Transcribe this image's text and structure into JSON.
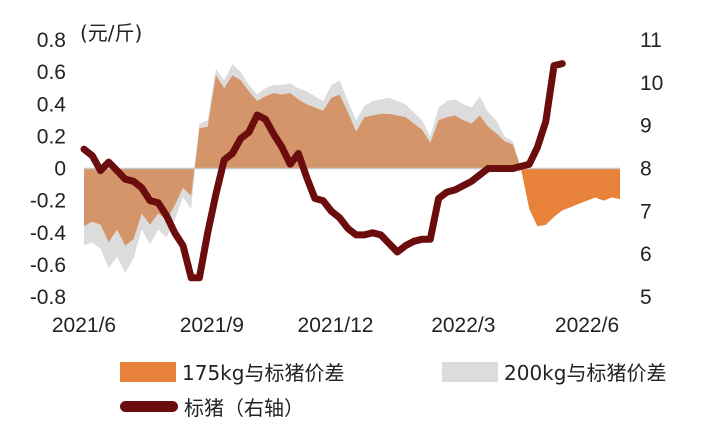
{
  "chart_data": {
    "type": "area+line",
    "unit_label": "(元/斤)",
    "x_tick_labels": [
      "2021/6",
      "2021/9",
      "2021/12",
      "2022/3",
      "2022/6"
    ],
    "y_left": {
      "min": -0.8,
      "max": 0.8,
      "ticks": [
        "0.8",
        "0.6",
        "0.4",
        "0.2",
        "0",
        "-0.2",
        "-0.4",
        "-0.6",
        "-0.8"
      ]
    },
    "y_right": {
      "min": 5,
      "max": 11,
      "ticks": [
        "11",
        "10",
        "9",
        "8",
        "7",
        "6",
        "5"
      ]
    },
    "x_range": [
      0,
      65
    ],
    "x_tick_positions": [
      0,
      15.5,
      30.5,
      46,
      61
    ],
    "series": [
      {
        "name": "200kg与标猪价差",
        "axis": "left",
        "color": "#dcdcdc",
        "x": [
          0,
          1,
          2,
          3,
          4,
          5,
          6,
          7,
          8,
          9,
          10,
          11,
          12,
          13,
          14,
          15,
          16,
          17,
          18,
          19,
          20,
          21,
          22,
          23,
          24,
          25,
          26,
          27,
          28,
          29,
          30,
          31,
          32,
          33,
          34,
          35,
          36,
          37,
          38,
          39,
          40,
          41,
          42,
          43,
          44,
          45,
          46,
          47,
          48,
          49,
          50,
          51,
          52,
          53,
          54,
          55,
          56,
          57,
          58,
          59,
          60,
          61,
          62,
          63,
          64,
          65
        ],
        "values": [
          -0.48,
          -0.46,
          -0.5,
          -0.62,
          -0.55,
          -0.65,
          -0.56,
          -0.38,
          -0.47,
          -0.38,
          -0.43,
          -0.32,
          -0.18,
          -0.25,
          0.28,
          0.3,
          0.62,
          0.55,
          0.65,
          0.6,
          0.52,
          0.46,
          0.5,
          0.52,
          0.52,
          0.53,
          0.5,
          0.48,
          0.45,
          0.42,
          0.52,
          0.55,
          0.42,
          0.3,
          0.39,
          0.42,
          0.43,
          0.44,
          0.42,
          0.4,
          0.35,
          0.3,
          0.2,
          0.38,
          0.42,
          0.43,
          0.4,
          0.38,
          0.45,
          0.35,
          0.3,
          0.2,
          0.17,
          0,
          -0.2,
          -0.35,
          -0.33,
          -0.28,
          -0.25,
          -0.22,
          -0.2,
          -0.18,
          -0.15,
          -0.16,
          -0.14,
          -0.15
        ]
      },
      {
        "name": "175kg与标猪价差",
        "axis": "left",
        "color": "#d4956a",
        "x": [
          0,
          1,
          2,
          3,
          4,
          5,
          6,
          7,
          8,
          9,
          10,
          11,
          12,
          13,
          14,
          15,
          16,
          17,
          18,
          19,
          20,
          21,
          22,
          23,
          24,
          25,
          26,
          27,
          28,
          29,
          30,
          31,
          32,
          33,
          34,
          35,
          36,
          37,
          38,
          39,
          40,
          41,
          42,
          43,
          44,
          45,
          46,
          47,
          48,
          49,
          50,
          51,
          52,
          53,
          54,
          55,
          56,
          57,
          58,
          59,
          60,
          61,
          62,
          63,
          64,
          65
        ],
        "values": [
          -0.36,
          -0.33,
          -0.35,
          -0.46,
          -0.38,
          -0.48,
          -0.44,
          -0.28,
          -0.35,
          -0.28,
          -0.32,
          -0.23,
          -0.12,
          -0.17,
          0.25,
          0.26,
          0.58,
          0.5,
          0.58,
          0.55,
          0.48,
          0.42,
          0.45,
          0.47,
          0.46,
          0.47,
          0.43,
          0.4,
          0.38,
          0.36,
          0.44,
          0.46,
          0.35,
          0.23,
          0.32,
          0.33,
          0.34,
          0.34,
          0.33,
          0.32,
          0.28,
          0.24,
          0.16,
          0.3,
          0.32,
          0.33,
          0.3,
          0.28,
          0.33,
          0.26,
          0.22,
          0.17,
          0.15,
          0,
          -0.25,
          -0.36,
          -0.35,
          -0.3,
          -0.26,
          -0.24,
          -0.22,
          -0.2,
          -0.18,
          -0.2,
          -0.18,
          -0.19
        ]
      },
      {
        "name": "标猪（右轴）",
        "axis": "right",
        "color": "#6b0d0d",
        "x": [
          0,
          1,
          2,
          3,
          4,
          5,
          6,
          7,
          8,
          9,
          10,
          11,
          12,
          13,
          14,
          15,
          16,
          17,
          18,
          19,
          20,
          21,
          22,
          23,
          24,
          25,
          26,
          27,
          28,
          29,
          30,
          31,
          32,
          33,
          34,
          35,
          36,
          37,
          38,
          39,
          40,
          41,
          42,
          43,
          44,
          45,
          46,
          47,
          48,
          49,
          50,
          51,
          52,
          53,
          54,
          55,
          56,
          57,
          58,
          59,
          60,
          61,
          62,
          63,
          64,
          65
        ],
        "values": [
          8.45,
          8.3,
          7.95,
          8.15,
          7.95,
          7.75,
          7.7,
          7.55,
          7.25,
          7.2,
          6.9,
          6.5,
          6.2,
          5.45,
          5.45,
          6.5,
          7.4,
          8.2,
          8.35,
          8.7,
          8.85,
          9.25,
          9.15,
          8.8,
          8.5,
          8.1,
          8.35,
          7.8,
          7.3,
          7.25,
          7.0,
          6.85,
          6.6,
          6.45,
          6.45,
          6.5,
          6.45,
          6.25,
          6.05,
          6.2,
          6.3,
          6.35,
          6.35,
          7.3,
          7.45,
          7.5,
          7.6,
          7.7,
          7.85,
          8.0,
          8.0,
          8.0,
          8.0,
          8.05,
          8.1,
          8.5,
          9.1,
          10.4,
          10.45,
          10.45,
          10.45,
          10.45,
          10.45,
          10.45,
          10.45,
          10.45
        ]
      }
    ],
    "legend": [
      {
        "label": "175kg与标猪价差",
        "color": "#e8823a"
      },
      {
        "label": "200kg与标猪价差",
        "color": "#dcdcdc"
      },
      {
        "label": "标猪（右轴）",
        "color": "#6b0d0d"
      }
    ],
    "grid": false,
    "legend_position": "bottom"
  }
}
